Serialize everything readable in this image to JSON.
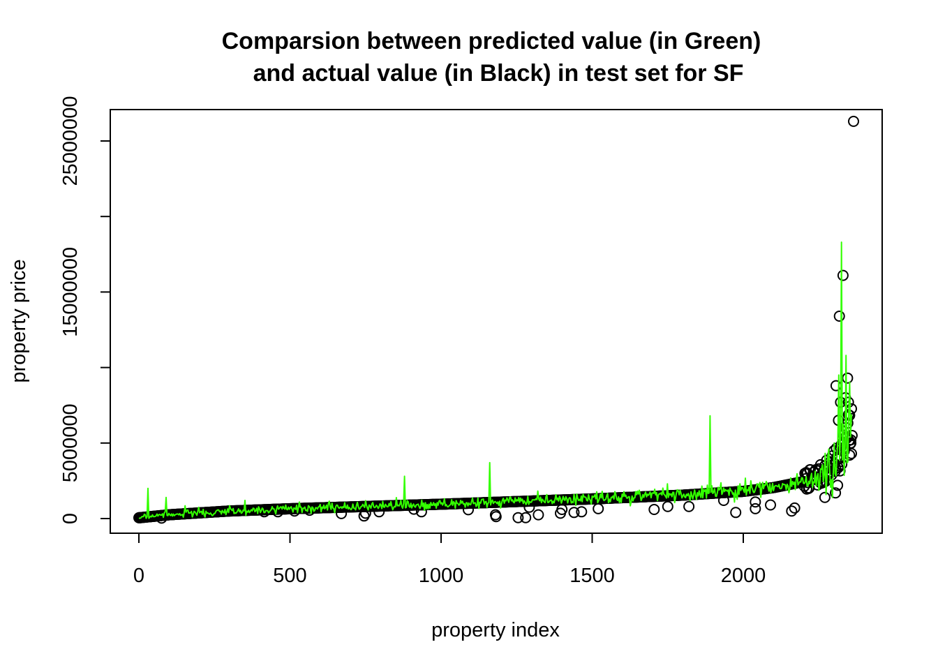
{
  "chart_data": {
    "type": "scatter",
    "title_lines": [
      "Comparsion between predicted value (in Green)",
      "and actual value (in Black) in test set for SF"
    ],
    "xlabel": "property index",
    "ylabel": "property price",
    "xlim": [
      0,
      2380
    ],
    "ylim": [
      0,
      26000000
    ],
    "x_ticks": [
      0,
      500,
      1000,
      1500,
      2000
    ],
    "x_tick_labels": [
      "0",
      "500",
      "1000",
      "1500",
      "2000"
    ],
    "y_ticks": [
      0,
      5000000,
      10000000,
      15000000,
      20000000,
      25000000
    ],
    "y_tick_labels": [
      "0",
      "5000000",
      "",
      "15000000",
      "",
      "25000000"
    ],
    "n_points": 2360,
    "actual_sorted_trend": [
      [
        0,
        50000
      ],
      [
        100,
        250000
      ],
      [
        300,
        500000
      ],
      [
        500,
        650000
      ],
      [
        1000,
        950000
      ],
      [
        1500,
        1300000
      ],
      [
        1800,
        1550000
      ],
      [
        2000,
        1800000
      ],
      [
        2100,
        2050000
      ],
      [
        2200,
        2450000
      ],
      [
        2260,
        2900000
      ],
      [
        2300,
        3600000
      ],
      [
        2330,
        4500000
      ],
      [
        2345,
        5500000
      ],
      [
        2360,
        6000000
      ]
    ],
    "actual_points": [
      [
        1,
        60000
      ],
      [
        75,
        30000
      ],
      [
        415,
        450000
      ],
      [
        460,
        450000
      ],
      [
        515,
        500000
      ],
      [
        565,
        550000
      ],
      [
        670,
        330000
      ],
      [
        745,
        170000
      ],
      [
        750,
        350000
      ],
      [
        795,
        450000
      ],
      [
        910,
        620000
      ],
      [
        935,
        450000
      ],
      [
        1090,
        580000
      ],
      [
        1180,
        250000
      ],
      [
        1182,
        130000
      ],
      [
        1255,
        60000
      ],
      [
        1280,
        60000
      ],
      [
        1292,
        750000
      ],
      [
        1322,
        250000
      ],
      [
        1395,
        350000
      ],
      [
        1400,
        600000
      ],
      [
        1440,
        400000
      ],
      [
        1465,
        450000
      ],
      [
        1520,
        650000
      ],
      [
        1705,
        600000
      ],
      [
        1750,
        800000
      ],
      [
        1820,
        800000
      ],
      [
        1935,
        1200000
      ],
      [
        1975,
        400000
      ],
      [
        2040,
        650000
      ],
      [
        2040,
        1100000
      ],
      [
        2090,
        900000
      ],
      [
        2160,
        500000
      ],
      [
        2170,
        700000
      ],
      [
        2270,
        1400000
      ],
      [
        2305,
        1700000
      ],
      [
        2312,
        2200000
      ],
      [
        2315,
        6500000
      ],
      [
        2307,
        8800000
      ],
      [
        2318,
        13400000
      ],
      [
        2330,
        16100000
      ],
      [
        2345,
        9300000
      ],
      [
        2348,
        7700000
      ],
      [
        2322,
        7700000
      ],
      [
        2338,
        8000000
      ],
      [
        2352,
        4200000
      ],
      [
        2356,
        5000000
      ],
      [
        2360,
        5500000
      ],
      [
        2358,
        4300000
      ],
      [
        2365,
        26300000
      ]
    ],
    "predicted_seed": 7
  }
}
